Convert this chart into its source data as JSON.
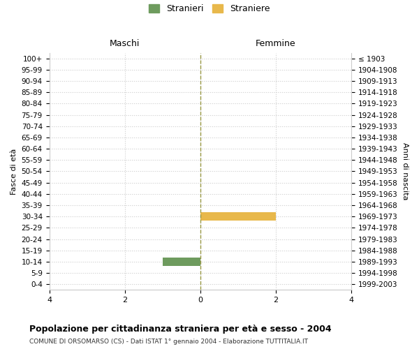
{
  "age_groups": [
    "0-4",
    "5-9",
    "10-14",
    "15-19",
    "20-24",
    "25-29",
    "30-34",
    "35-39",
    "40-44",
    "45-49",
    "50-54",
    "55-59",
    "60-64",
    "65-69",
    "70-74",
    "75-79",
    "80-84",
    "85-89",
    "90-94",
    "95-99",
    "100+"
  ],
  "birth_years": [
    "1999-2003",
    "1994-1998",
    "1989-1993",
    "1984-1988",
    "1979-1983",
    "1974-1978",
    "1969-1973",
    "1964-1968",
    "1959-1963",
    "1954-1958",
    "1949-1953",
    "1944-1948",
    "1939-1943",
    "1934-1938",
    "1929-1933",
    "1924-1928",
    "1919-1923",
    "1914-1918",
    "1909-1913",
    "1904-1908",
    "≤ 1903"
  ],
  "males": [
    0,
    0,
    1,
    0,
    0,
    0,
    0,
    0,
    0,
    0,
    0,
    0,
    0,
    0,
    0,
    0,
    0,
    0,
    0,
    0,
    0
  ],
  "females": [
    0,
    0,
    0,
    0,
    0,
    0,
    2,
    0,
    0,
    0,
    0,
    0,
    0,
    0,
    0,
    0,
    0,
    0,
    0,
    0,
    0
  ],
  "male_color": "#6e9b5e",
  "female_color": "#e8b84b",
  "xlim": 4,
  "title": "Popolazione per cittadinanza straniera per età e sesso - 2004",
  "subtitle": "COMUNE DI ORSOMARSO (CS) - Dati ISTAT 1° gennaio 2004 - Elaborazione TUTTITALIA.IT",
  "xlabel_left": "Maschi",
  "xlabel_right": "Femmine",
  "ylabel_left": "Fasce di età",
  "ylabel_right": "Anni di nascita",
  "legend_male": "Stranieri",
  "legend_female": "Straniere",
  "bar_height": 0.75,
  "background_color": "#ffffff",
  "grid_color": "#cccccc",
  "grid_style": "dotted"
}
